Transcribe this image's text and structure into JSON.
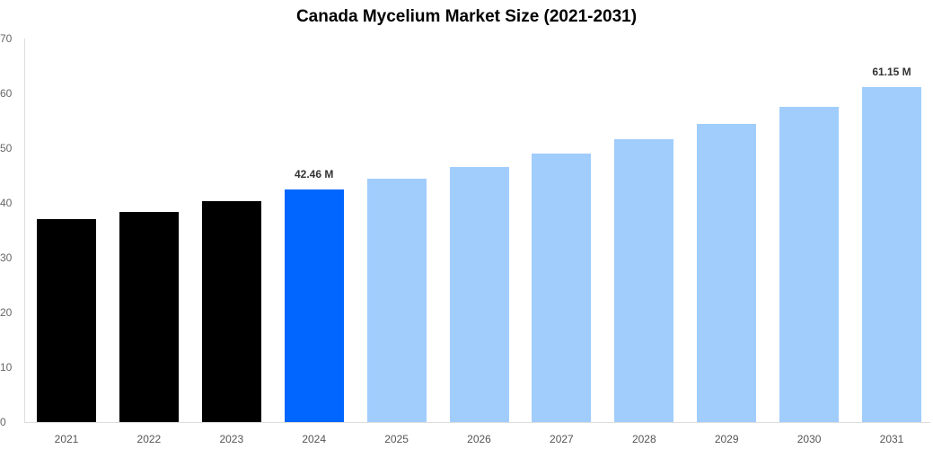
{
  "chart_data": {
    "type": "bar",
    "title": "Canada Mycelium Market Size (2021-2031)",
    "xlabel": "",
    "ylabel": "",
    "ylim": [
      0,
      70
    ],
    "yticks": [
      0,
      10,
      20,
      30,
      40,
      50,
      60,
      70
    ],
    "grid": false,
    "legend": null,
    "categories": [
      "2021",
      "2022",
      "2023",
      "2024",
      "2025",
      "2026",
      "2027",
      "2028",
      "2029",
      "2030",
      "2031"
    ],
    "values": [
      37.1,
      38.4,
      40.3,
      42.46,
      44.5,
      46.6,
      49.0,
      51.6,
      54.4,
      57.5,
      61.15
    ],
    "colors": [
      "#000000",
      "#000000",
      "#000000",
      "#0066ff",
      "#a1cdfd",
      "#a1cdfd",
      "#a1cdfd",
      "#a1cdfd",
      "#a1cdfd",
      "#a1cdfd",
      "#a1cdfd"
    ],
    "data_labels": {
      "2024": "42.46 M",
      "2031": "61.15 M"
    }
  }
}
